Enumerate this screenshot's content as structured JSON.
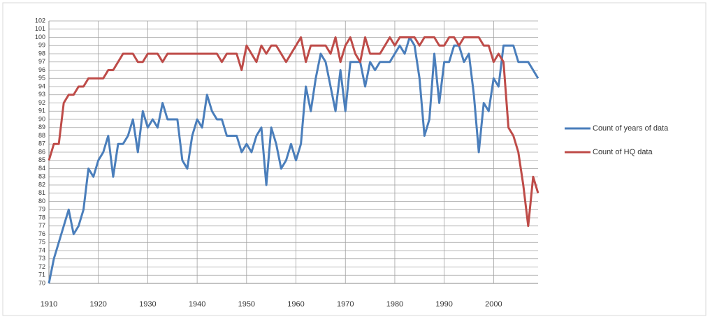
{
  "chart_data": {
    "type": "line",
    "x": [
      1910,
      1911,
      1912,
      1913,
      1914,
      1915,
      1916,
      1917,
      1918,
      1919,
      1920,
      1921,
      1922,
      1923,
      1924,
      1925,
      1926,
      1927,
      1928,
      1929,
      1930,
      1931,
      1932,
      1933,
      1934,
      1935,
      1936,
      1937,
      1938,
      1939,
      1940,
      1941,
      1942,
      1943,
      1944,
      1945,
      1946,
      1947,
      1948,
      1949,
      1950,
      1951,
      1952,
      1953,
      1954,
      1955,
      1956,
      1957,
      1958,
      1959,
      1960,
      1961,
      1962,
      1963,
      1964,
      1965,
      1966,
      1967,
      1968,
      1969,
      1970,
      1971,
      1972,
      1973,
      1974,
      1975,
      1976,
      1977,
      1978,
      1979,
      1980,
      1981,
      1982,
      1983,
      1984,
      1985,
      1986,
      1987,
      1988,
      1989,
      1990,
      1991,
      1992,
      1993,
      1994,
      1995,
      1996,
      1997,
      1998,
      1999,
      2000,
      2001,
      2002,
      2003,
      2004,
      2005,
      2006,
      2007,
      2008,
      2009
    ],
    "series": [
      {
        "name": "Count of years of data",
        "color": "#4a7ebb",
        "values": [
          70,
          73,
          75,
          77,
          79,
          76,
          77,
          79,
          84,
          83,
          85,
          86,
          88,
          83,
          87,
          87,
          88,
          90,
          86,
          91,
          89,
          90,
          89,
          92,
          90,
          90,
          90,
          85,
          84,
          88,
          90,
          89,
          93,
          91,
          90,
          90,
          88,
          88,
          88,
          86,
          87,
          86,
          88,
          89,
          82,
          89,
          87,
          84,
          85,
          87,
          85,
          87,
          94,
          91,
          95,
          98,
          97,
          94,
          91,
          96,
          91,
          97,
          97,
          97,
          94,
          97,
          96,
          97,
          97,
          97,
          98,
          99,
          98,
          100,
          99,
          95,
          88,
          90,
          98,
          92,
          97,
          97,
          99,
          99,
          97,
          98,
          93,
          86,
          92,
          91,
          95,
          94,
          99,
          99,
          99,
          97,
          97,
          97,
          96,
          95
        ]
      },
      {
        "name": "Count of HQ data",
        "color": "#be4b48",
        "values": [
          85,
          87,
          87,
          92,
          93,
          93,
          94,
          94,
          95,
          95,
          95,
          95,
          96,
          96,
          97,
          98,
          98,
          98,
          97,
          97,
          98,
          98,
          98,
          97,
          98,
          98,
          98,
          98,
          98,
          98,
          98,
          98,
          98,
          98,
          98,
          97,
          98,
          98,
          98,
          96,
          99,
          98,
          97,
          99,
          98,
          99,
          99,
          98,
          97,
          98,
          99,
          100,
          97,
          99,
          99,
          99,
          99,
          98,
          100,
          97,
          99,
          100,
          98,
          97,
          100,
          98,
          98,
          98,
          99,
          100,
          99,
          100,
          100,
          100,
          100,
          99,
          100,
          100,
          100,
          99,
          99,
          100,
          100,
          99,
          100,
          100,
          100,
          100,
          99,
          99,
          97,
          98,
          97,
          89,
          88,
          86,
          82,
          77,
          83,
          81
        ]
      }
    ],
    "xlim": [
      1910,
      2009
    ],
    "xticks": [
      1910,
      1920,
      1930,
      1940,
      1950,
      1960,
      1970,
      1980,
      1990,
      2000
    ],
    "ylim": [
      70,
      102
    ],
    "yticks": [
      70,
      71,
      72,
      73,
      74,
      75,
      76,
      77,
      78,
      79,
      80,
      81,
      82,
      83,
      84,
      85,
      86,
      87,
      88,
      89,
      90,
      91,
      92,
      93,
      94,
      95,
      96,
      97,
      98,
      99,
      100,
      101,
      102
    ],
    "grid": true,
    "legend": "right"
  }
}
